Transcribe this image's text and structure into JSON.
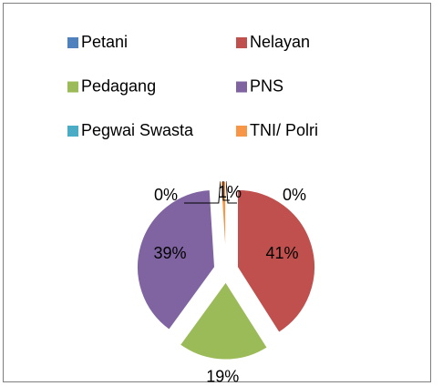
{
  "chart_data": {
    "type": "pie",
    "categories": [
      "Petani",
      "Nelayan",
      "Pedagang",
      "PNS",
      "Pegwai Swasta",
      "TNI/ Polri"
    ],
    "values": [
      0,
      41,
      19,
      39,
      0,
      1
    ],
    "value_labels": [
      "0%",
      "41%",
      "19%",
      "39%",
      "0%",
      "1%"
    ],
    "colors": [
      "#4f81bd",
      "#c0504d",
      "#9bbb59",
      "#8064a2",
      "#4bacc6",
      "#f79646"
    ],
    "legend": "top"
  }
}
